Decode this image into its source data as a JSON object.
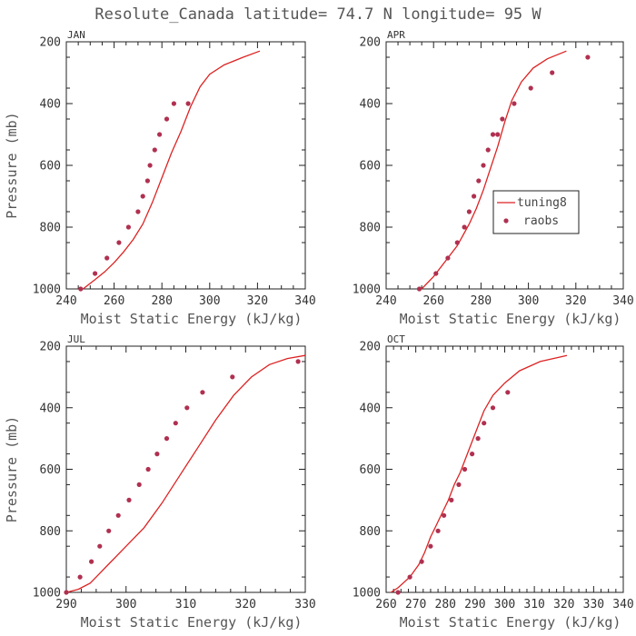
{
  "title": "Resolute_Canada  latitude= 74.7 N longitude= 95 W",
  "colors": {
    "model": "#dd2222",
    "obs": "#b03050",
    "axis": "#222222",
    "text": "#555555"
  },
  "chart_data": [
    {
      "type": "line",
      "panel": "JAN",
      "xlabel": "Moist Static Energy (kJ/kg)",
      "ylabel": "Pressure (mb)",
      "xlim": [
        240,
        340
      ],
      "ylim": [
        1000,
        200
      ],
      "xticks": [
        240,
        260,
        280,
        300,
        320,
        340
      ],
      "yticks": [
        200,
        400,
        600,
        800,
        1000
      ],
      "series": [
        {
          "name": "tuning8",
          "kind": "line",
          "x": [
            247,
            252,
            256,
            260,
            264,
            268,
            272,
            276,
            280,
            284,
            288,
            292,
            296,
            300,
            306,
            314,
            321
          ],
          "y": [
            1000,
            970,
            945,
            915,
            880,
            840,
            790,
            720,
            640,
            560,
            490,
            410,
            345,
            305,
            275,
            250,
            230
          ]
        },
        {
          "name": "raobs",
          "kind": "scatter",
          "x": [
            246,
            252,
            257,
            262,
            266,
            270,
            272,
            274,
            275,
            277,
            279,
            282,
            285,
            291
          ],
          "y": [
            1000,
            950,
            900,
            850,
            800,
            750,
            700,
            650,
            600,
            550,
            500,
            450,
            400,
            400
          ]
        }
      ]
    },
    {
      "type": "line",
      "panel": "APR",
      "xlabel": "Moist Static Energy (kJ/kg)",
      "ylabel": "",
      "xlim": [
        240,
        340
      ],
      "ylim": [
        1000,
        200
      ],
      "xticks": [
        240,
        260,
        280,
        300,
        320,
        340
      ],
      "yticks": [
        200,
        400,
        600,
        800,
        1000
      ],
      "legend": {
        "position": "center-right",
        "entries": [
          "tuning8",
          "raobs"
        ]
      },
      "series": [
        {
          "name": "tuning8",
          "kind": "line",
          "x": [
            255,
            260,
            265,
            270,
            275,
            278,
            281,
            284,
            287,
            290,
            293,
            297,
            302,
            308,
            316
          ],
          "y": [
            1000,
            960,
            910,
            860,
            790,
            740,
            680,
            610,
            540,
            460,
            390,
            330,
            285,
            255,
            230
          ]
        },
        {
          "name": "raobs",
          "kind": "scatter",
          "x": [
            254,
            261,
            266,
            270,
            273,
            275,
            277,
            279,
            281,
            283,
            285,
            287,
            289,
            294,
            301,
            310,
            325
          ],
          "y": [
            1000,
            950,
            900,
            850,
            800,
            750,
            700,
            650,
            600,
            550,
            500,
            500,
            450,
            400,
            350,
            300,
            250
          ]
        }
      ]
    },
    {
      "type": "line",
      "panel": "JUL",
      "xlabel": "Moist Static Energy (kJ/kg)",
      "ylabel": "Pressure (mb)",
      "xlim": [
        290,
        330
      ],
      "ylim": [
        1000,
        200
      ],
      "xticks": [
        290,
        300,
        310,
        320,
        330
      ],
      "yticks": [
        200,
        400,
        600,
        800,
        1000
      ],
      "series": [
        {
          "name": "tuning8",
          "kind": "line",
          "x": [
            290,
            292,
            294,
            295.5,
            297,
            300,
            303,
            306,
            309,
            312,
            315,
            318,
            321,
            324,
            327,
            330
          ],
          "y": [
            1000,
            990,
            970,
            940,
            910,
            850,
            790,
            710,
            620,
            530,
            440,
            360,
            300,
            260,
            240,
            230
          ]
        },
        {
          "name": "raobs",
          "kind": "scatter",
          "x": [
            290,
            292.3,
            294.2,
            295.6,
            297.1,
            298.7,
            300.5,
            302.2,
            303.7,
            305.2,
            306.8,
            308.3,
            310.2,
            312.8,
            317.8,
            328.8
          ],
          "y": [
            1000,
            950,
            900,
            850,
            800,
            750,
            700,
            650,
            600,
            550,
            500,
            450,
            400,
            350,
            300,
            250
          ]
        }
      ]
    },
    {
      "type": "line",
      "panel": "OCT",
      "xlabel": "Moist Static Energy (kJ/kg)",
      "ylabel": "",
      "xlim": [
        260,
        340
      ],
      "ylim": [
        1000,
        200
      ],
      "xticks": [
        260,
        270,
        280,
        290,
        300,
        310,
        320,
        330,
        340
      ],
      "yticks": [
        200,
        400,
        600,
        800,
        1000
      ],
      "series": [
        {
          "name": "tuning8",
          "kind": "line",
          "x": [
            260,
            264,
            268,
            271,
            273,
            275,
            277,
            279,
            281,
            283,
            285,
            287,
            289,
            291,
            293,
            296,
            300,
            305,
            312,
            321
          ],
          "y": [
            1010,
            985,
            950,
            910,
            870,
            820,
            780,
            740,
            700,
            650,
            610,
            560,
            510,
            460,
            410,
            360,
            320,
            280,
            250,
            230
          ]
        },
        {
          "name": "raobs",
          "kind": "scatter",
          "x": [
            264,
            268,
            272,
            275,
            277.5,
            279.5,
            282,
            284.5,
            286.5,
            289,
            291,
            293,
            296,
            301
          ],
          "y": [
            1000,
            950,
            900,
            850,
            800,
            750,
            700,
            650,
            600,
            550,
            500,
            450,
            400,
            350
          ]
        }
      ]
    }
  ]
}
